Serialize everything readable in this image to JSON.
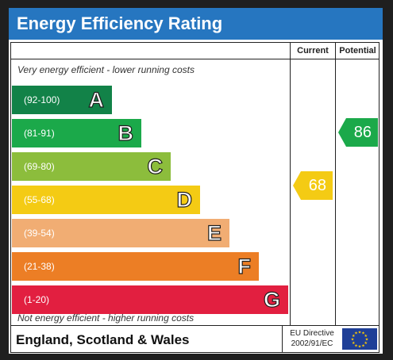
{
  "title": "Energy Efficiency Rating",
  "columns": {
    "current": "Current",
    "potential": "Potential"
  },
  "captions": {
    "top": "Very energy efficient - lower running costs",
    "bottom": "Not energy efficient - higher running costs"
  },
  "bands": [
    {
      "range": "(92-100)",
      "letter": "A",
      "color": "#128248"
    },
    {
      "range": "(81-91)",
      "letter": "B",
      "color": "#1ba94a"
    },
    {
      "range": "(69-80)",
      "letter": "C",
      "color": "#8cbd3c"
    },
    {
      "range": "(55-68)",
      "letter": "D",
      "color": "#f4cb14"
    },
    {
      "range": "(39-54)",
      "letter": "E",
      "color": "#f1ad73"
    },
    {
      "range": "(21-38)",
      "letter": "F",
      "color": "#ec7e25"
    },
    {
      "range": "(1-20)",
      "letter": "G",
      "color": "#e21f40"
    }
  ],
  "current_rating": {
    "value": "68",
    "color": "#f4cb14"
  },
  "potential_rating": {
    "value": "86",
    "color": "#1ba94a"
  },
  "footer": {
    "region": "England, Scotland & Wales",
    "directive_line1": "EU Directive",
    "directive_line2": "2002/91/EC",
    "flag_icon": "eu-flag-icon"
  }
}
